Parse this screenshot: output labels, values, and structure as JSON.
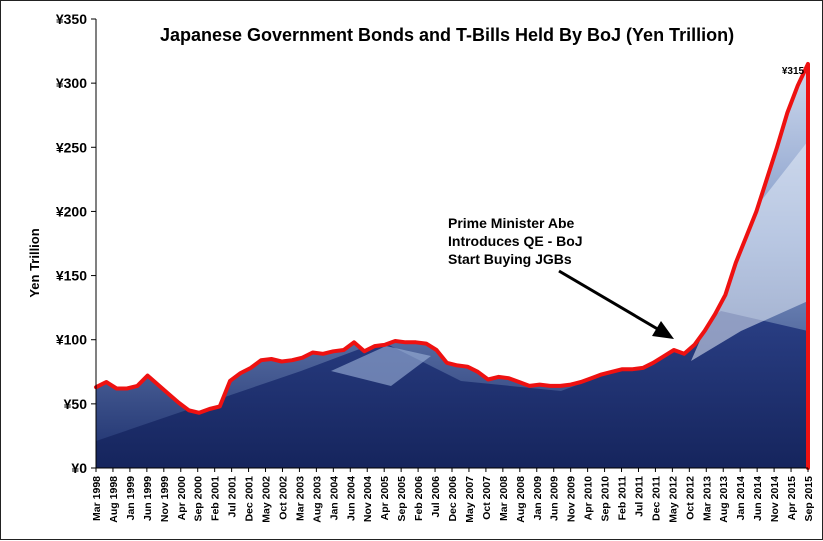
{
  "chart_data": {
    "type": "area",
    "title": "Japanese Government Bonds and T-Bills Held By BoJ (Yen Trillion)",
    "ylabel": "Yen Trillion",
    "xlabel": "",
    "ylim": [
      0,
      350
    ],
    "y_ticks": [
      "¥0",
      "¥50",
      "¥100",
      "¥150",
      "¥200",
      "¥250",
      "¥300",
      "¥350"
    ],
    "x_tick_labels": [
      "Mar 1998",
      "Aug 1998",
      "Jan 1999",
      "Jun 1999",
      "Nov 1999",
      "Apr 2000",
      "Sep 2000",
      "Feb 2001",
      "Jul 2001",
      "Dec 2001",
      "May 2002",
      "Oct 2002",
      "Mar 2003",
      "Aug 2003",
      "Jan 2004",
      "Jun 2004",
      "Nov 2004",
      "Apr 2005",
      "Sep 2005",
      "Feb 2006",
      "Jul 2006",
      "Dec 2006",
      "May 2007",
      "Oct 2007",
      "Mar 2008",
      "Aug 2008",
      "Jan 2009",
      "Jun 2009",
      "Nov 2009",
      "Apr 2010",
      "Sep 2010",
      "Feb 2011",
      "Jul 2011",
      "Dec 2011",
      "May 2012",
      "Oct 2012",
      "Mar 2013",
      "Aug 2013",
      "Jan 2014",
      "Jun 2014",
      "Nov 2014",
      "Apr 2015",
      "Sep 2015"
    ],
    "series": [
      {
        "values": [
          63,
          67,
          62,
          62,
          64,
          72,
          65,
          58,
          51,
          45,
          43,
          46,
          48,
          68,
          74,
          78,
          84,
          85,
          83,
          84,
          86,
          90,
          89,
          91,
          92,
          98,
          91,
          95,
          96,
          99,
          98,
          98,
          97,
          92,
          82,
          80,
          79,
          75,
          69,
          71,
          70,
          67,
          64,
          65,
          64,
          64,
          65,
          67,
          70,
          73,
          75,
          77,
          77,
          78,
          82,
          87,
          92,
          89,
          96,
          107,
          120,
          135,
          160,
          180,
          200,
          225,
          250,
          277,
          298,
          315
        ]
      }
    ],
    "end_label": "¥315",
    "annotation": {
      "lines": [
        "Prime Minister Abe",
        "Introduces QE - BoJ",
        "Start Buying JGBs"
      ]
    },
    "grid": false,
    "legend": "none"
  },
  "colors": {
    "line": "#ee1111",
    "area_dark": "#1a2d6b",
    "area_light": "#c9d6ec",
    "sky": "#d8cfc4"
  }
}
